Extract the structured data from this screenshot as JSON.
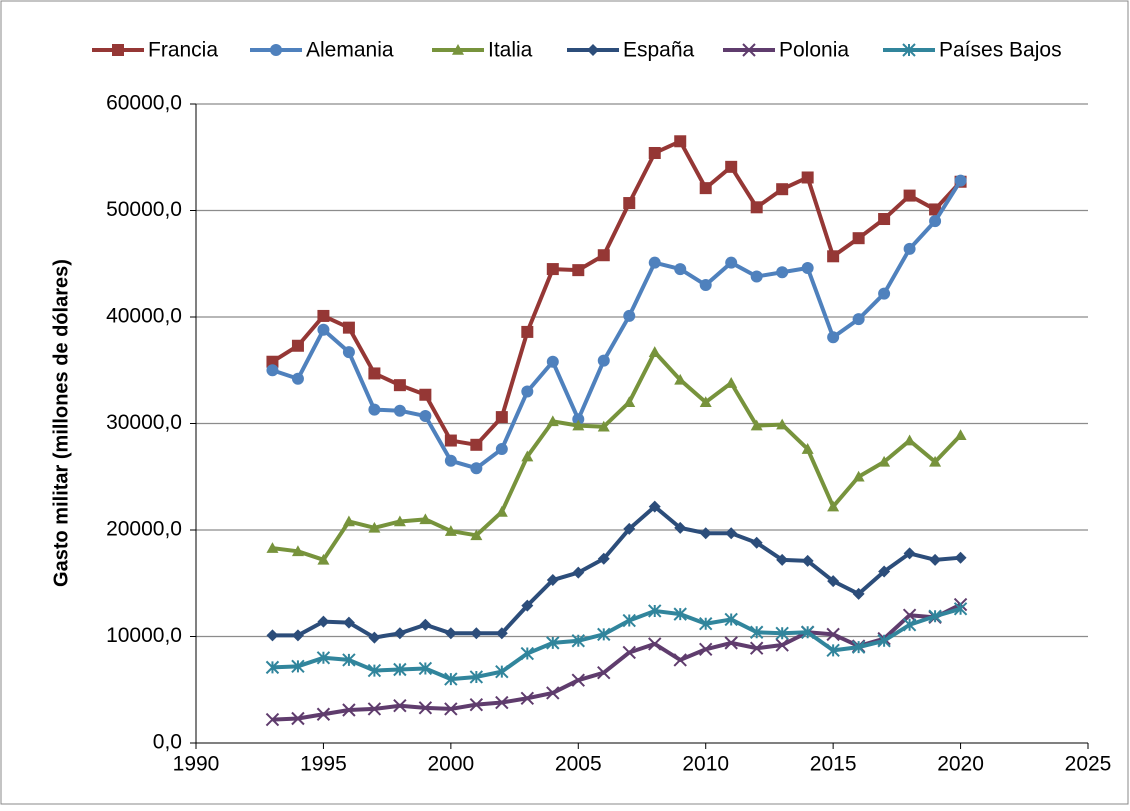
{
  "chart_data": {
    "type": "line",
    "y_label": "Gasto militar (millones de dólares)",
    "x": [
      1993,
      1994,
      1995,
      1996,
      1997,
      1998,
      1999,
      2000,
      2001,
      2002,
      2003,
      2004,
      2005,
      2006,
      2007,
      2008,
      2009,
      2010,
      2011,
      2012,
      2013,
      2014,
      2015,
      2016,
      2017,
      2018,
      2019,
      2020
    ],
    "series": [
      {
        "name": "Francia",
        "color": "#953735",
        "marker": "square",
        "values": [
          35800,
          37300,
          40100,
          39000,
          34700,
          33600,
          32700,
          28400,
          28000,
          30600,
          38600,
          44500,
          44400,
          45800,
          50700,
          55400,
          56500,
          52100,
          54100,
          50300,
          52000,
          53100,
          45700,
          47400,
          49200,
          51400,
          50100,
          52700
        ]
      },
      {
        "name": "Alemania",
        "color": "#4f81bd",
        "marker": "circle",
        "values": [
          35000,
          34200,
          38800,
          36700,
          31300,
          31200,
          30700,
          26500,
          25800,
          27600,
          33000,
          35800,
          30400,
          35900,
          40100,
          45100,
          44500,
          43000,
          45100,
          43800,
          44200,
          44600,
          38100,
          39800,
          42200,
          46400,
          49000,
          52800
        ]
      },
      {
        "name": "Italia",
        "color": "#77933c",
        "marker": "triangle",
        "values": [
          18300,
          18000,
          17200,
          20800,
          20200,
          20800,
          21000,
          19900,
          19500,
          21700,
          26900,
          30200,
          29800,
          29700,
          32000,
          36700,
          34100,
          32000,
          33800,
          29800,
          29900,
          27600,
          22200,
          25000,
          26400,
          28400,
          26400,
          28900
        ]
      },
      {
        "name": "España",
        "color": "#2c4d7a",
        "marker": "diamond",
        "values": [
          10100,
          10100,
          11400,
          11300,
          9900,
          10300,
          11100,
          10300,
          10300,
          10300,
          12900,
          15300,
          16000,
          17300,
          20100,
          22200,
          20200,
          19700,
          19700,
          18800,
          17200,
          17100,
          15200,
          14000,
          16100,
          17800,
          17200,
          17400
        ]
      },
      {
        "name": "Polonia",
        "color": "#5f3c6d",
        "marker": "x",
        "values": [
          2200,
          2300,
          2700,
          3100,
          3200,
          3500,
          3300,
          3200,
          3600,
          3800,
          4200,
          4700,
          5900,
          6600,
          8500,
          9300,
          7800,
          8800,
          9400,
          8900,
          9200,
          10400,
          10200,
          9100,
          9800,
          12000,
          11800,
          13000
        ]
      },
      {
        "name": "Países Bajos",
        "color": "#31859c",
        "marker": "star",
        "values": [
          7100,
          7200,
          8000,
          7800,
          6800,
          6900,
          7000,
          6000,
          6200,
          6700,
          8400,
          9400,
          9600,
          10200,
          11500,
          12400,
          12100,
          11200,
          11600,
          10400,
          10300,
          10400,
          8700,
          9000,
          9600,
          11100,
          11900,
          12600
        ]
      }
    ],
    "xlim": [
      1990,
      2025
    ],
    "xticks": [
      1990,
      1995,
      2000,
      2005,
      2010,
      2015,
      2020,
      2025
    ],
    "ylim": [
      0,
      60000
    ],
    "yticks": [
      {
        "value": 0,
        "label": "0,0"
      },
      {
        "value": 10000,
        "label": "10000,0"
      },
      {
        "value": 20000,
        "label": "20000,0"
      },
      {
        "value": 30000,
        "label": "30000,0"
      },
      {
        "value": 40000,
        "label": "40000,0"
      },
      {
        "value": 50000,
        "label": "50000,0"
      },
      {
        "value": 60000,
        "label": "60000,0"
      }
    ],
    "grid": true,
    "legend": "top"
  }
}
